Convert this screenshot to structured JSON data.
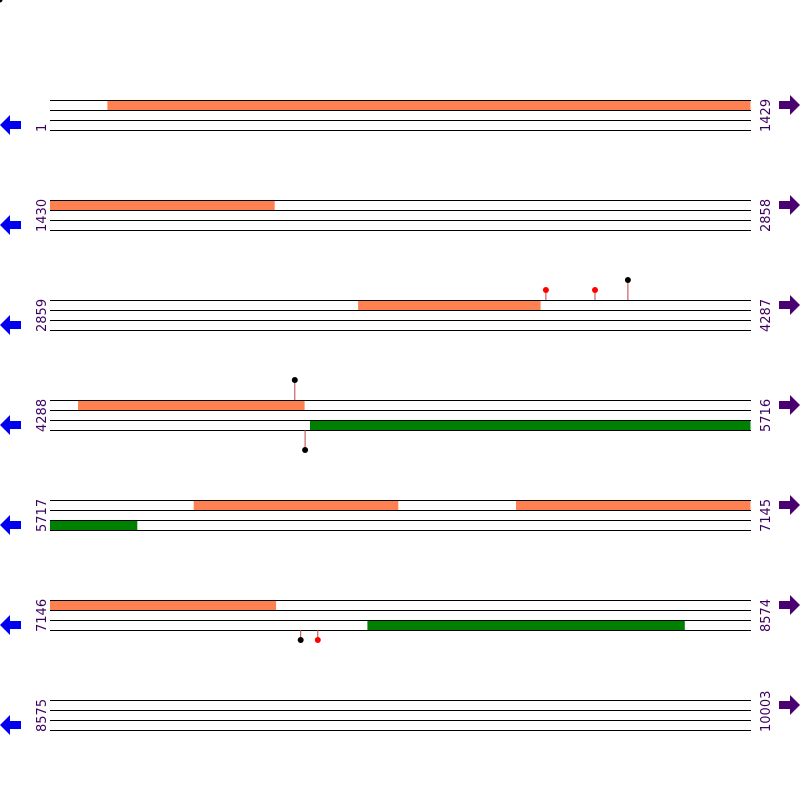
{
  "colors": {
    "strand_line": "#000000",
    "forward_orf": "#ff8050",
    "reverse_orf": "#008000",
    "left_arrow": "#0000ee",
    "right_arrow": "#4b0072",
    "label": "#3d005e",
    "site_stem": "#c04040",
    "site_black": "#000000",
    "site_red": "#ff0000"
  },
  "icons": {
    "left": "left-arrow-icon",
    "right": "right-arrow-icon"
  },
  "rows": [
    {
      "start": "1",
      "end": "1429",
      "startValue": 1,
      "endValue": 1429,
      "segments": [
        {
          "lane": 0,
          "from": 118,
          "to": 1429,
          "color": "forward_orf"
        }
      ],
      "markers": []
    },
    {
      "start": "1430",
      "end": "2858",
      "startValue": 1430,
      "endValue": 2858,
      "segments": [
        {
          "lane": 0,
          "from": 1430,
          "to": 1888,
          "color": "forward_orf"
        }
      ],
      "markers": []
    },
    {
      "start": "2859",
      "end": "4287",
      "startValue": 2859,
      "endValue": 4287,
      "segments": [
        {
          "lane": 0,
          "from": 3487,
          "to": 3859,
          "color": "forward_orf"
        }
      ],
      "markers": [
        {
          "pos": 3870,
          "dir": "up",
          "length": "short",
          "color": "site_red"
        },
        {
          "pos": 3970,
          "dir": "up",
          "length": "short",
          "color": "site_red"
        },
        {
          "pos": 4037,
          "dir": "up",
          "length": "long",
          "color": "site_black"
        }
      ]
    },
    {
      "start": "4288",
      "end": "5716",
      "startValue": 4288,
      "endValue": 5716,
      "segments": [
        {
          "lane": 0,
          "from": 4345,
          "to": 4807,
          "color": "forward_orf"
        },
        {
          "lane": 2,
          "from": 4818,
          "to": 5716,
          "color": "reverse_orf"
        }
      ],
      "markers": [
        {
          "pos": 4787,
          "dir": "up",
          "length": "long",
          "color": "site_black"
        },
        {
          "pos": 4808,
          "dir": "down",
          "length": "long",
          "color": "site_black"
        }
      ]
    },
    {
      "start": "5717",
      "end": "7145",
      "startValue": 5717,
      "endValue": 7145,
      "segments": [
        {
          "lane": 0,
          "from": 6010,
          "to": 6427,
          "color": "forward_orf"
        },
        {
          "lane": 0,
          "from": 6667,
          "to": 7145,
          "color": "forward_orf"
        },
        {
          "lane": 2,
          "from": 5717,
          "to": 5895,
          "color": "reverse_orf"
        }
      ],
      "markers": []
    },
    {
      "start": "7146",
      "end": "8574",
      "startValue": 7146,
      "endValue": 8574,
      "segments": [
        {
          "lane": 0,
          "from": 7146,
          "to": 7607,
          "color": "forward_orf"
        },
        {
          "lane": 2,
          "from": 7793,
          "to": 8440,
          "color": "reverse_orf"
        }
      ],
      "markers": [
        {
          "pos": 7657,
          "dir": "down",
          "length": "short",
          "color": "site_black"
        },
        {
          "pos": 7692,
          "dir": "down",
          "length": "short",
          "color": "site_red"
        }
      ]
    },
    {
      "start": "8575",
      "end": "10003",
      "startValue": 8575,
      "endValue": 10003,
      "segments": [],
      "markers": []
    }
  ]
}
